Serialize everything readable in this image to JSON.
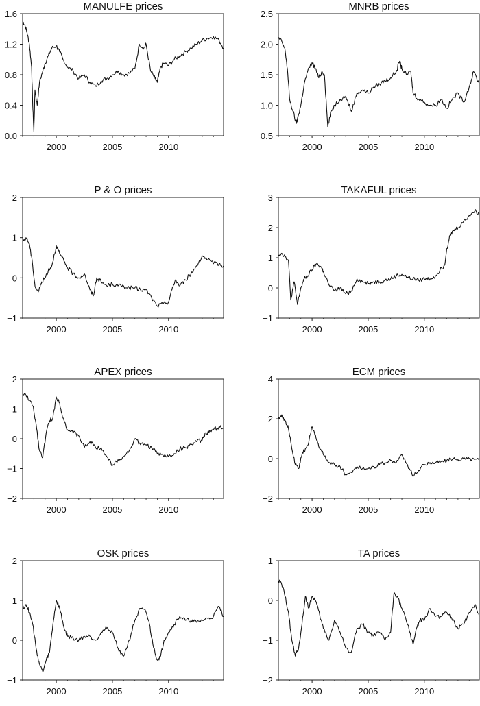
{
  "chart_data": [
    {
      "type": "line",
      "title": "MANULFE prices",
      "xlabel": "",
      "ylabel": "",
      "xlim": [
        1997.0,
        2014.9
      ],
      "ylim": [
        0.0,
        1.6
      ],
      "x_ticks": [
        "2000",
        "2005",
        "2010"
      ],
      "y_ticks": [
        "0.0",
        "0.4",
        "0.8",
        "1.2",
        "1.6"
      ],
      "series": [
        {
          "x": [
            1997.0,
            1997.2,
            1997.4,
            1997.6,
            1997.8,
            1997.9,
            1998.0,
            1998.1,
            1998.3,
            1998.5,
            1998.8,
            1999.0,
            1999.3,
            1999.6,
            2000.0,
            2000.3,
            2000.6,
            2001.0,
            2001.5,
            2002.0,
            2002.5,
            2003.0,
            2003.5,
            2004.0,
            2004.5,
            2005.0,
            2005.5,
            2006.0,
            2006.5,
            2007.0,
            2007.4,
            2007.8,
            2008.0,
            2008.4,
            2008.8,
            2009.0,
            2009.3,
            2009.6,
            2010.0,
            2010.5,
            2011.0,
            2011.5,
            2012.0,
            2012.5,
            2013.0,
            2013.5,
            2014.0,
            2014.5,
            2014.9
          ],
          "y": [
            1.5,
            1.45,
            1.35,
            1.2,
            0.9,
            0.4,
            0.05,
            0.6,
            0.4,
            0.7,
            0.85,
            0.95,
            1.05,
            1.15,
            1.18,
            1.1,
            1.0,
            0.9,
            0.85,
            0.75,
            0.8,
            0.7,
            0.65,
            0.72,
            0.75,
            0.8,
            0.85,
            0.8,
            0.82,
            0.88,
            1.2,
            1.15,
            1.2,
            0.85,
            0.75,
            0.7,
            0.9,
            0.95,
            0.92,
            1.0,
            1.05,
            1.1,
            1.15,
            1.2,
            1.25,
            1.28,
            1.3,
            1.25,
            1.15
          ]
        }
      ]
    },
    {
      "type": "line",
      "title": "MNRB prices",
      "xlabel": "",
      "ylabel": "",
      "xlim": [
        1997.0,
        2014.9
      ],
      "ylim": [
        0.5,
        2.5
      ],
      "x_ticks": [
        "2000",
        "2005",
        "2010"
      ],
      "y_ticks": [
        "0.5",
        "1.0",
        "1.5",
        "2.0",
        "2.5"
      ],
      "series": [
        {
          "x": [
            1997.0,
            1997.3,
            1997.6,
            1997.8,
            1998.0,
            1998.3,
            1998.6,
            1998.8,
            1999.0,
            1999.3,
            1999.6,
            2000.0,
            2000.3,
            2000.6,
            2000.9,
            2001.1,
            2001.4,
            2001.7,
            2002.0,
            2002.5,
            2003.0,
            2003.5,
            2004.0,
            2004.5,
            2005.0,
            2005.5,
            2006.0,
            2006.5,
            2007.0,
            2007.5,
            2007.8,
            2008.0,
            2008.4,
            2008.8,
            2009.0,
            2009.5,
            2010.0,
            2010.5,
            2011.0,
            2011.5,
            2012.0,
            2012.5,
            2013.0,
            2013.5,
            2014.0,
            2014.4,
            2014.9
          ],
          "y": [
            2.1,
            2.05,
            1.9,
            1.6,
            1.1,
            0.9,
            0.7,
            0.85,
            1.0,
            1.35,
            1.55,
            1.7,
            1.6,
            1.45,
            1.55,
            1.5,
            0.65,
            0.9,
            1.0,
            1.1,
            1.15,
            0.9,
            1.2,
            1.25,
            1.2,
            1.3,
            1.35,
            1.4,
            1.45,
            1.55,
            1.72,
            1.6,
            1.5,
            1.55,
            1.2,
            1.1,
            1.05,
            1.0,
            1.0,
            1.1,
            0.95,
            1.1,
            1.2,
            1.05,
            1.3,
            1.55,
            1.35
          ]
        }
      ]
    },
    {
      "type": "line",
      "title": "P & O prices",
      "xlabel": "",
      "ylabel": "",
      "xlim": [
        1997.0,
        2014.9
      ],
      "ylim": [
        -1,
        2
      ],
      "x_ticks": [
        "2000",
        "2005",
        "2010"
      ],
      "y_ticks": [
        "−1",
        "0",
        "1",
        "2"
      ],
      "series": [
        {
          "x": [
            1997.0,
            1997.3,
            1997.6,
            1997.9,
            1998.1,
            1998.4,
            1998.7,
            1999.0,
            1999.3,
            1999.6,
            2000.0,
            2000.3,
            2000.7,
            2001.0,
            2001.5,
            2002.0,
            2002.5,
            2003.0,
            2003.3,
            2003.6,
            2004.0,
            2004.5,
            2005.0,
            2005.5,
            2006.0,
            2006.5,
            2007.0,
            2007.5,
            2008.0,
            2008.5,
            2009.0,
            2009.5,
            2010.0,
            2010.3,
            2010.6,
            2011.0,
            2011.5,
            2012.0,
            2012.5,
            2013.0,
            2013.5,
            2014.0,
            2014.5,
            2014.9
          ],
          "y": [
            0.9,
            1.0,
            0.85,
            0.3,
            -0.2,
            -0.35,
            -0.1,
            0.0,
            0.2,
            0.3,
            0.8,
            0.6,
            0.4,
            0.25,
            0.1,
            0.0,
            0.1,
            -0.3,
            -0.45,
            0.0,
            -0.1,
            -0.2,
            -0.15,
            -0.2,
            -0.2,
            -0.25,
            -0.25,
            -0.3,
            -0.3,
            -0.5,
            -0.7,
            -0.65,
            -0.6,
            -0.3,
            -0.05,
            -0.2,
            -0.05,
            0.1,
            0.3,
            0.55,
            0.45,
            0.35,
            0.35,
            0.3
          ]
        }
      ]
    },
    {
      "type": "line",
      "title": "TAKAFUL prices",
      "xlabel": "",
      "ylabel": "",
      "xlim": [
        1997.0,
        2014.9
      ],
      "ylim": [
        -1,
        3
      ],
      "x_ticks": [
        "2000",
        "2005",
        "2010"
      ],
      "y_ticks": [
        "−1",
        "0",
        "1",
        "2",
        "3"
      ],
      "series": [
        {
          "x": [
            1997.0,
            1997.3,
            1997.6,
            1997.9,
            1998.1,
            1998.4,
            1998.7,
            1999.0,
            1999.3,
            1999.6,
            2000.0,
            2000.4,
            2000.8,
            2001.0,
            2001.5,
            2002.0,
            2002.5,
            2003.0,
            2003.5,
            2004.0,
            2004.5,
            2005.0,
            2005.5,
            2006.0,
            2006.5,
            2007.0,
            2007.5,
            2008.0,
            2008.5,
            2009.0,
            2009.5,
            2010.0,
            2010.5,
            2011.0,
            2011.4,
            2011.8,
            2012.0,
            2012.3,
            2012.6,
            2013.0,
            2013.5,
            2014.0,
            2014.5,
            2014.9
          ],
          "y": [
            1.1,
            1.15,
            1.05,
            0.9,
            -0.4,
            0.2,
            -0.55,
            0.0,
            0.3,
            0.4,
            0.6,
            0.8,
            0.7,
            0.55,
            0.1,
            -0.1,
            0.0,
            -0.2,
            -0.1,
            0.3,
            0.2,
            0.15,
            0.2,
            0.2,
            0.25,
            0.3,
            0.4,
            0.45,
            0.35,
            0.3,
            0.25,
            0.3,
            0.3,
            0.4,
            0.6,
            0.75,
            1.3,
            1.75,
            1.9,
            2.0,
            2.2,
            2.4,
            2.55,
            2.45
          ]
        }
      ]
    },
    {
      "type": "line",
      "title": "APEX prices",
      "xlabel": "",
      "ylabel": "",
      "xlim": [
        1997.0,
        2014.9
      ],
      "ylim": [
        -2,
        2
      ],
      "x_ticks": [
        "2000",
        "2005",
        "2010"
      ],
      "y_ticks": [
        "−2",
        "−1",
        "0",
        "1",
        "2"
      ],
      "series": [
        {
          "x": [
            1997.0,
            1997.3,
            1997.6,
            1997.9,
            1998.2,
            1998.5,
            1998.8,
            1999.1,
            1999.4,
            1999.7,
            2000.0,
            2000.3,
            2000.6,
            2001.0,
            2001.5,
            2002.0,
            2002.5,
            2003.0,
            2003.5,
            2004.0,
            2004.5,
            2005.0,
            2005.5,
            2006.0,
            2006.5,
            2007.0,
            2007.5,
            2008.0,
            2008.5,
            2009.0,
            2009.5,
            2010.0,
            2010.5,
            2011.0,
            2011.5,
            2012.0,
            2012.5,
            2013.0,
            2013.3,
            2013.6,
            2014.0,
            2014.5,
            2014.9
          ],
          "y": [
            1.5,
            1.45,
            1.3,
            1.1,
            0.5,
            -0.4,
            -0.6,
            0.2,
            0.6,
            0.7,
            1.4,
            1.2,
            0.7,
            0.3,
            0.2,
            0.1,
            -0.3,
            -0.1,
            -0.3,
            -0.3,
            -0.6,
            -0.9,
            -0.7,
            -0.6,
            -0.4,
            0.0,
            -0.2,
            -0.2,
            -0.3,
            -0.5,
            -0.55,
            -0.6,
            -0.5,
            -0.35,
            -0.3,
            -0.2,
            -0.1,
            -0.05,
            0.2,
            0.2,
            0.3,
            0.4,
            0.35
          ]
        }
      ]
    },
    {
      "type": "line",
      "title": "ECM prices",
      "xlabel": "",
      "ylabel": "",
      "xlim": [
        1997.0,
        2014.9
      ],
      "ylim": [
        -2,
        4
      ],
      "x_ticks": [
        "2000",
        "2005",
        "2010"
      ],
      "y_ticks": [
        "−2",
        "0",
        "2",
        "4"
      ],
      "series": [
        {
          "x": [
            1997.0,
            1997.3,
            1997.6,
            1997.9,
            1998.2,
            1998.5,
            1998.8,
            1999.1,
            1999.4,
            1999.7,
            2000.0,
            2000.3,
            2000.6,
            2001.0,
            2001.5,
            2002.0,
            2002.5,
            2003.0,
            2003.5,
            2004.0,
            2004.5,
            2005.0,
            2005.5,
            2006.0,
            2006.5,
            2007.0,
            2007.5,
            2008.0,
            2008.5,
            2009.0,
            2009.5,
            2010.0,
            2010.5,
            2011.0,
            2011.5,
            2012.0,
            2012.5,
            2013.0,
            2013.5,
            2014.0,
            2014.5,
            2014.9
          ],
          "y": [
            2.0,
            2.2,
            1.9,
            1.5,
            0.5,
            -0.3,
            -0.5,
            0.2,
            0.5,
            0.8,
            1.6,
            1.2,
            0.6,
            0.2,
            -0.2,
            -0.3,
            -0.4,
            -0.8,
            -0.7,
            -0.4,
            -0.5,
            -0.5,
            -0.4,
            -0.3,
            -0.2,
            -0.1,
            -0.2,
            0.2,
            -0.3,
            -0.9,
            -0.6,
            -0.3,
            -0.2,
            -0.2,
            -0.15,
            -0.1,
            -0.05,
            -0.05,
            0.0,
            0.0,
            -0.05,
            -0.05
          ]
        }
      ]
    },
    {
      "type": "line",
      "title": "OSK prices",
      "xlabel": "",
      "ylabel": "",
      "xlim": [
        1997.0,
        2014.9
      ],
      "ylim": [
        -1,
        2
      ],
      "x_ticks": [
        "2000",
        "2005",
        "2010"
      ],
      "y_ticks": [
        "−1",
        "0",
        "1",
        "2"
      ],
      "series": [
        {
          "x": [
            1997.0,
            1997.3,
            1997.6,
            1997.9,
            1998.2,
            1998.5,
            1998.8,
            1999.1,
            1999.4,
            1999.7,
            2000.0,
            2000.3,
            2000.7,
            2001.0,
            2001.5,
            2002.0,
            2002.5,
            2003.0,
            2003.5,
            2004.0,
            2004.5,
            2005.0,
            2005.5,
            2006.0,
            2006.5,
            2007.0,
            2007.5,
            2008.0,
            2008.3,
            2008.6,
            2009.0,
            2009.3,
            2009.6,
            2010.0,
            2010.5,
            2011.0,
            2011.5,
            2012.0,
            2012.5,
            2013.0,
            2013.5,
            2014.0,
            2014.5,
            2014.9
          ],
          "y": [
            0.8,
            0.9,
            0.7,
            0.4,
            -0.2,
            -0.6,
            -0.8,
            -0.5,
            -0.3,
            0.4,
            1.0,
            0.8,
            0.3,
            0.1,
            0.05,
            0.0,
            0.1,
            0.1,
            0.0,
            0.2,
            0.3,
            0.2,
            -0.2,
            -0.4,
            0.0,
            0.5,
            0.8,
            0.7,
            0.4,
            -0.1,
            -0.5,
            -0.4,
            0.0,
            0.2,
            0.4,
            0.6,
            0.5,
            0.5,
            0.45,
            0.5,
            0.55,
            0.6,
            0.85,
            0.6
          ]
        }
      ]
    },
    {
      "type": "line",
      "title": "TA prices",
      "xlabel": "",
      "ylabel": "",
      "xlim": [
        1997.0,
        2014.9
      ],
      "ylim": [
        -2,
        1
      ],
      "x_ticks": [
        "2000",
        "2005",
        "2010"
      ],
      "y_ticks": [
        "−2",
        "−1",
        "0",
        "1"
      ],
      "series": [
        {
          "x": [
            1997.0,
            1997.3,
            1997.6,
            1997.9,
            1998.2,
            1998.5,
            1998.8,
            1999.1,
            1999.4,
            1999.7,
            2000.0,
            2000.3,
            2000.7,
            2001.0,
            2001.5,
            2002.0,
            2002.5,
            2003.0,
            2003.5,
            2004.0,
            2004.5,
            2005.0,
            2005.5,
            2006.0,
            2006.5,
            2007.0,
            2007.3,
            2007.6,
            2008.0,
            2008.5,
            2009.0,
            2009.3,
            2009.6,
            2010.0,
            2010.5,
            2011.0,
            2011.5,
            2012.0,
            2012.5,
            2013.0,
            2013.5,
            2014.0,
            2014.5,
            2014.9
          ],
          "y": [
            0.5,
            0.4,
            0.1,
            -0.3,
            -1.0,
            -1.4,
            -1.2,
            -0.6,
            0.1,
            -0.2,
            0.1,
            0.0,
            -0.4,
            -0.7,
            -1.0,
            -0.5,
            -0.8,
            -1.2,
            -1.3,
            -0.7,
            -0.6,
            -0.8,
            -0.9,
            -0.8,
            -1.0,
            -0.8,
            0.2,
            0.1,
            -0.2,
            -0.6,
            -1.1,
            -0.7,
            -0.5,
            -0.5,
            -0.2,
            -0.4,
            -0.4,
            -0.3,
            -0.5,
            -0.7,
            -0.6,
            -0.3,
            -0.1,
            -0.4
          ]
        }
      ]
    }
  ]
}
